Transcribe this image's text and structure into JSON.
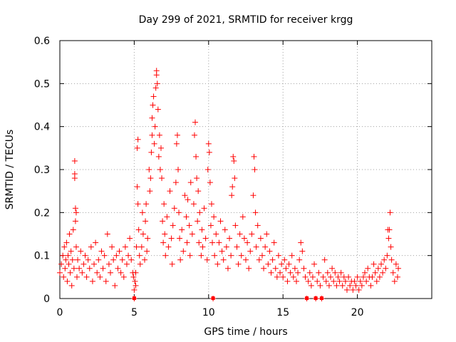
{
  "chart_data": {
    "type": "scatter",
    "title": "Day 299 of 2021, SRMTID for receiver krgg",
    "xlabel": "GPS time / hours",
    "ylabel": "SRMTID / TECUs",
    "xlim": [
      0,
      25
    ],
    "ylim": [
      0,
      0.6
    ],
    "x_ticks": [
      "0",
      "5",
      "10",
      "15",
      "20"
    ],
    "x_tick_values": [
      0,
      5,
      10,
      15,
      20
    ],
    "y_ticks": [
      "0",
      "0.1",
      "0.2",
      "0.3",
      "0.4",
      "0.5",
      "0.6"
    ],
    "y_tick_values": [
      0,
      0.1,
      0.2,
      0.3,
      0.4,
      0.5,
      0.6
    ],
    "grid": true,
    "marker": "+",
    "marker_color": "#ff0000",
    "series": [
      {
        "name": "SRMTID",
        "points": [
          [
            0.0,
            0.06
          ],
          [
            0.1,
            0.08
          ],
          [
            0.2,
            0.1
          ],
          [
            0.25,
            0.05
          ],
          [
            0.3,
            0.12
          ],
          [
            0.35,
            0.07
          ],
          [
            0.4,
            0.09
          ],
          [
            0.45,
            0.13
          ],
          [
            0.5,
            0.04
          ],
          [
            0.55,
            0.1
          ],
          [
            0.6,
            0.08
          ],
          [
            0.65,
            0.15
          ],
          [
            0.7,
            0.06
          ],
          [
            0.75,
            0.11
          ],
          [
            0.8,
            0.03
          ],
          [
            0.85,
            0.09
          ],
          [
            0.9,
            0.16
          ],
          [
            0.95,
            0.07
          ],
          [
            1.0,
            0.32
          ],
          [
            1.0,
            0.29
          ],
          [
            1.0,
            0.28
          ],
          [
            1.05,
            0.21
          ],
          [
            1.05,
            0.18
          ],
          [
            1.1,
            0.2
          ],
          [
            1.1,
            0.12
          ],
          [
            1.15,
            0.05
          ],
          [
            1.2,
            0.09
          ],
          [
            1.3,
            0.07
          ],
          [
            1.4,
            0.11
          ],
          [
            1.5,
            0.06
          ],
          [
            1.6,
            0.08
          ],
          [
            1.7,
            0.1
          ],
          [
            1.8,
            0.05
          ],
          [
            1.9,
            0.09
          ],
          [
            2.0,
            0.07
          ],
          [
            2.1,
            0.12
          ],
          [
            2.2,
            0.04
          ],
          [
            2.3,
            0.08
          ],
          [
            2.4,
            0.13
          ],
          [
            2.5,
            0.06
          ],
          [
            2.6,
            0.09
          ],
          [
            2.7,
            0.05
          ],
          [
            2.8,
            0.11
          ],
          [
            2.9,
            0.07
          ],
          [
            3.0,
            0.1
          ],
          [
            3.1,
            0.04
          ],
          [
            3.2,
            0.15
          ],
          [
            3.3,
            0.08
          ],
          [
            3.4,
            0.06
          ],
          [
            3.5,
            0.12
          ],
          [
            3.6,
            0.09
          ],
          [
            3.7,
            0.03
          ],
          [
            3.8,
            0.1
          ],
          [
            3.9,
            0.07
          ],
          [
            4.0,
            0.11
          ],
          [
            4.1,
            0.06
          ],
          [
            4.2,
            0.09
          ],
          [
            4.3,
            0.05
          ],
          [
            4.4,
            0.12
          ],
          [
            4.5,
            0.08
          ],
          [
            4.6,
            0.1
          ],
          [
            4.7,
            0.14
          ],
          [
            4.8,
            0.09
          ],
          [
            4.9,
            0.06
          ],
          [
            4.95,
            0.05
          ],
          [
            5.0,
            0.0
          ],
          [
            5.0,
            0.02
          ],
          [
            5.05,
            0.04
          ],
          [
            5.1,
            0.06
          ],
          [
            5.1,
            0.03
          ],
          [
            5.15,
            0.12
          ],
          [
            5.2,
            0.26
          ],
          [
            5.2,
            0.35
          ],
          [
            5.25,
            0.37
          ],
          [
            5.25,
            0.22
          ],
          [
            5.3,
            0.16
          ],
          [
            5.35,
            0.1
          ],
          [
            5.4,
            0.08
          ],
          [
            5.5,
            0.12
          ],
          [
            5.55,
            0.2
          ],
          [
            5.6,
            0.15
          ],
          [
            5.7,
            0.09
          ],
          [
            5.75,
            0.18
          ],
          [
            5.8,
            0.22
          ],
          [
            5.85,
            0.11
          ],
          [
            5.9,
            0.14
          ],
          [
            6.0,
            0.3
          ],
          [
            6.05,
            0.25
          ],
          [
            6.1,
            0.28
          ],
          [
            6.15,
            0.34
          ],
          [
            6.2,
            0.42
          ],
          [
            6.2,
            0.38
          ],
          [
            6.25,
            0.45
          ],
          [
            6.3,
            0.47
          ],
          [
            6.35,
            0.36
          ],
          [
            6.4,
            0.4
          ],
          [
            6.45,
            0.49
          ],
          [
            6.5,
            0.53
          ],
          [
            6.5,
            0.52
          ],
          [
            6.55,
            0.5
          ],
          [
            6.6,
            0.44
          ],
          [
            6.65,
            0.33
          ],
          [
            6.7,
            0.38
          ],
          [
            6.75,
            0.3
          ],
          [
            6.8,
            0.35
          ],
          [
            6.85,
            0.28
          ],
          [
            6.9,
            0.18
          ],
          [
            6.95,
            0.13
          ],
          [
            7.0,
            0.22
          ],
          [
            7.05,
            0.15
          ],
          [
            7.1,
            0.1
          ],
          [
            7.2,
            0.19
          ],
          [
            7.3,
            0.12
          ],
          [
            7.4,
            0.25
          ],
          [
            7.5,
            0.14
          ],
          [
            7.55,
            0.08
          ],
          [
            7.6,
            0.17
          ],
          [
            7.7,
            0.21
          ],
          [
            7.8,
            0.27
          ],
          [
            7.85,
            0.36
          ],
          [
            7.9,
            0.38
          ],
          [
            7.95,
            0.3
          ],
          [
            8.0,
            0.2
          ],
          [
            8.05,
            0.14
          ],
          [
            8.1,
            0.09
          ],
          [
            8.2,
            0.16
          ],
          [
            8.3,
            0.11
          ],
          [
            8.4,
            0.24
          ],
          [
            8.5,
            0.19
          ],
          [
            8.55,
            0.13
          ],
          [
            8.6,
            0.23
          ],
          [
            8.7,
            0.17
          ],
          [
            8.75,
            0.1
          ],
          [
            8.8,
            0.27
          ],
          [
            8.9,
            0.15
          ],
          [
            9.0,
            0.22
          ],
          [
            9.05,
            0.38
          ],
          [
            9.1,
            0.41
          ],
          [
            9.15,
            0.33
          ],
          [
            9.2,
            0.28
          ],
          [
            9.25,
            0.18
          ],
          [
            9.3,
            0.25
          ],
          [
            9.35,
            0.13
          ],
          [
            9.4,
            0.2
          ],
          [
            9.5,
            0.1
          ],
          [
            9.55,
            0.16
          ],
          [
            9.6,
            0.12
          ],
          [
            9.7,
            0.21
          ],
          [
            9.8,
            0.14
          ],
          [
            9.9,
            0.09
          ],
          [
            9.95,
            0.3
          ],
          [
            10.0,
            0.36
          ],
          [
            10.05,
            0.34
          ],
          [
            10.1,
            0.27
          ],
          [
            10.15,
            0.17
          ],
          [
            10.2,
            0.22
          ],
          [
            10.25,
            0.13
          ],
          [
            10.3,
            0.0
          ],
          [
            10.35,
            0.19
          ],
          [
            10.4,
            0.1
          ],
          [
            10.5,
            0.15
          ],
          [
            10.6,
            0.08
          ],
          [
            10.7,
            0.13
          ],
          [
            10.8,
            0.18
          ],
          [
            10.9,
            0.11
          ],
          [
            11.0,
            0.09
          ],
          [
            11.1,
            0.16
          ],
          [
            11.2,
            0.12
          ],
          [
            11.3,
            0.07
          ],
          [
            11.4,
            0.14
          ],
          [
            11.5,
            0.1
          ],
          [
            11.55,
            0.24
          ],
          [
            11.6,
            0.26
          ],
          [
            11.65,
            0.33
          ],
          [
            11.7,
            0.32
          ],
          [
            11.75,
            0.28
          ],
          [
            11.8,
            0.17
          ],
          [
            11.9,
            0.12
          ],
          [
            12.0,
            0.08
          ],
          [
            12.1,
            0.15
          ],
          [
            12.2,
            0.1
          ],
          [
            12.3,
            0.19
          ],
          [
            12.4,
            0.14
          ],
          [
            12.5,
            0.09
          ],
          [
            12.6,
            0.13
          ],
          [
            12.7,
            0.07
          ],
          [
            12.8,
            0.11
          ],
          [
            12.9,
            0.15
          ],
          [
            13.0,
            0.24
          ],
          [
            13.05,
            0.33
          ],
          [
            13.1,
            0.3
          ],
          [
            13.15,
            0.2
          ],
          [
            13.2,
            0.12
          ],
          [
            13.3,
            0.17
          ],
          [
            13.4,
            0.09
          ],
          [
            13.5,
            0.14
          ],
          [
            13.6,
            0.1
          ],
          [
            13.7,
            0.07
          ],
          [
            13.8,
            0.12
          ],
          [
            13.9,
            0.15
          ],
          [
            14.0,
            0.08
          ],
          [
            14.1,
            0.11
          ],
          [
            14.2,
            0.06
          ],
          [
            14.3,
            0.09
          ],
          [
            14.4,
            0.13
          ],
          [
            14.5,
            0.07
          ],
          [
            14.6,
            0.05
          ],
          [
            14.7,
            0.1
          ],
          [
            14.8,
            0.06
          ],
          [
            14.9,
            0.08
          ],
          [
            15.0,
            0.05
          ],
          [
            15.1,
            0.09
          ],
          [
            15.2,
            0.07
          ],
          [
            15.3,
            0.04
          ],
          [
            15.4,
            0.08
          ],
          [
            15.5,
            0.06
          ],
          [
            15.6,
            0.1
          ],
          [
            15.7,
            0.05
          ],
          [
            15.8,
            0.07
          ],
          [
            15.9,
            0.04
          ],
          [
            16.0,
            0.06
          ],
          [
            16.1,
            0.09
          ],
          [
            16.2,
            0.13
          ],
          [
            16.3,
            0.11
          ],
          [
            16.4,
            0.07
          ],
          [
            16.5,
            0.05
          ],
          [
            16.6,
            0.0
          ],
          [
            16.7,
            0.04
          ],
          [
            16.8,
            0.06
          ],
          [
            16.9,
            0.03
          ],
          [
            17.0,
            0.05
          ],
          [
            17.1,
            0.08
          ],
          [
            17.2,
            0.0
          ],
          [
            17.3,
            0.04
          ],
          [
            17.4,
            0.06
          ],
          [
            17.5,
            0.03
          ],
          [
            17.6,
            0.0
          ],
          [
            17.7,
            0.05
          ],
          [
            17.8,
            0.09
          ],
          [
            17.9,
            0.04
          ],
          [
            18.0,
            0.06
          ],
          [
            18.1,
            0.03
          ],
          [
            18.2,
            0.05
          ],
          [
            18.3,
            0.07
          ],
          [
            18.4,
            0.04
          ],
          [
            18.5,
            0.06
          ],
          [
            18.6,
            0.03
          ],
          [
            18.7,
            0.05
          ],
          [
            18.8,
            0.04
          ],
          [
            18.9,
            0.06
          ],
          [
            19.0,
            0.03
          ],
          [
            19.1,
            0.05
          ],
          [
            19.2,
            0.04
          ],
          [
            19.3,
            0.02
          ],
          [
            19.4,
            0.05
          ],
          [
            19.5,
            0.03
          ],
          [
            19.6,
            0.04
          ],
          [
            19.7,
            0.02
          ],
          [
            19.8,
            0.04
          ],
          [
            19.9,
            0.03
          ],
          [
            20.0,
            0.05
          ],
          [
            20.1,
            0.02
          ],
          [
            20.2,
            0.04
          ],
          [
            20.3,
            0.03
          ],
          [
            20.4,
            0.05
          ],
          [
            20.5,
            0.06
          ],
          [
            20.6,
            0.04
          ],
          [
            20.7,
            0.07
          ],
          [
            20.8,
            0.05
          ],
          [
            20.9,
            0.03
          ],
          [
            21.0,
            0.05
          ],
          [
            21.1,
            0.08
          ],
          [
            21.2,
            0.06
          ],
          [
            21.3,
            0.04
          ],
          [
            21.4,
            0.07
          ],
          [
            21.5,
            0.05
          ],
          [
            21.6,
            0.08
          ],
          [
            21.7,
            0.06
          ],
          [
            21.8,
            0.09
          ],
          [
            21.9,
            0.07
          ],
          [
            22.0,
            0.1
          ],
          [
            22.05,
            0.16
          ],
          [
            22.1,
            0.14
          ],
          [
            22.15,
            0.16
          ],
          [
            22.2,
            0.2
          ],
          [
            22.25,
            0.12
          ],
          [
            22.3,
            0.09
          ],
          [
            22.4,
            0.06
          ],
          [
            22.5,
            0.04
          ],
          [
            22.6,
            0.08
          ],
          [
            22.7,
            0.05
          ],
          [
            22.75,
            0.07
          ]
        ]
      }
    ],
    "bottom_markers_x": [
      5.0,
      10.3,
      16.6,
      17.2,
      17.6
    ]
  }
}
